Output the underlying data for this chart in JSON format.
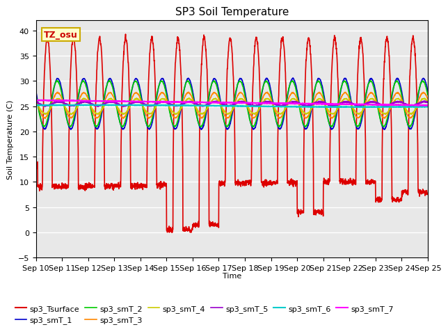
{
  "title": "SP3 Soil Temperature",
  "ylabel": "Soil Temperature (C)",
  "xlabel": "Time",
  "ylim": [
    -5,
    42
  ],
  "xlim": [
    0,
    15
  ],
  "background_color": "#ffffff",
  "plot_bg_color": "#e8e8e8",
  "annotation_text": "TZ_osu",
  "annotation_bg": "#ffffcc",
  "annotation_border": "#ccaa00",
  "x_tick_labels": [
    "Sep 10",
    "Sep 11",
    "Sep 12",
    "Sep 13",
    "Sep 14",
    "Sep 15",
    "Sep 16",
    "Sep 17",
    "Sep 18",
    "Sep 19",
    "Sep 20",
    "Sep 21",
    "Sep 22",
    "Sep 23",
    "Sep 24",
    "Sep 25"
  ],
  "series": {
    "sp3_Tsurface": {
      "color": "#dd0000",
      "lw": 1.2
    },
    "sp3_smT_1": {
      "color": "#0000cc",
      "lw": 1.2
    },
    "sp3_smT_2": {
      "color": "#00cc00",
      "lw": 1.2
    },
    "sp3_smT_3": {
      "color": "#ff8800",
      "lw": 1.2
    },
    "sp3_smT_4": {
      "color": "#cccc00",
      "lw": 1.2
    },
    "sp3_smT_5": {
      "color": "#9900cc",
      "lw": 1.5
    },
    "sp3_smT_6": {
      "color": "#00cccc",
      "lw": 1.5
    },
    "sp3_smT_7": {
      "color": "#ff00ff",
      "lw": 1.5
    }
  }
}
